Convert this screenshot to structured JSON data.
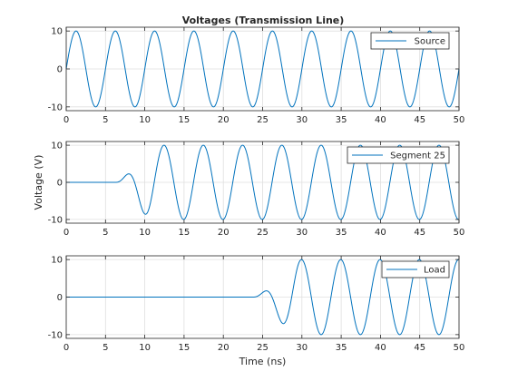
{
  "chart_data": [
    {
      "type": "line",
      "title": "Voltages (Transmission Line)",
      "xlabel": "",
      "ylabel": "",
      "xlim": [
        0,
        50
      ],
      "ylim": [
        -11,
        11
      ],
      "xticks": [
        0,
        5,
        10,
        15,
        20,
        25,
        30,
        35,
        40,
        45,
        50
      ],
      "xtick_labels": [
        "0",
        "5",
        "10",
        "15",
        "20",
        "25",
        "30",
        "35",
        "40",
        "45",
        "50"
      ],
      "yticks": [
        -10,
        0,
        10
      ],
      "ytick_labels": [
        "-10",
        "0",
        "10"
      ],
      "grid": true,
      "legend_position": "top-right",
      "series": [
        {
          "name": "Source",
          "color": "#0072BD",
          "amplitude": 10,
          "period_ns": 5,
          "delay_ns": 0,
          "ramp_ns": 0
        }
      ]
    },
    {
      "type": "line",
      "title": "",
      "xlabel": "",
      "ylabel": "Voltage (V)",
      "xlim": [
        0,
        50
      ],
      "ylim": [
        -11,
        11
      ],
      "xticks": [
        0,
        5,
        10,
        15,
        20,
        25,
        30,
        35,
        40,
        45,
        50
      ],
      "xtick_labels": [
        "0",
        "5",
        "10",
        "15",
        "20",
        "25",
        "30",
        "35",
        "40",
        "45",
        "50"
      ],
      "yticks": [
        -10,
        0,
        10
      ],
      "ytick_labels": [
        "-10",
        "0",
        "10"
      ],
      "grid": true,
      "legend_position": "top-right",
      "series": [
        {
          "name": "Segment 25",
          "color": "#0072BD",
          "amplitude": 10,
          "period_ns": 5,
          "delay_ns": 6.2,
          "ramp_ns": 5
        }
      ]
    },
    {
      "type": "line",
      "title": "",
      "xlabel": "Time (ns)",
      "ylabel": "",
      "xlim": [
        0,
        50
      ],
      "ylim": [
        -11,
        11
      ],
      "xticks": [
        0,
        5,
        10,
        15,
        20,
        25,
        30,
        35,
        40,
        45,
        50
      ],
      "xtick_labels": [
        "0",
        "5",
        "10",
        "15",
        "20",
        "25",
        "30",
        "35",
        "40",
        "45",
        "50"
      ],
      "yticks": [
        -10,
        0,
        10
      ],
      "ytick_labels": [
        "-10",
        "0",
        "10"
      ],
      "grid": true,
      "legend_position": "top-right",
      "series": [
        {
          "name": "Load",
          "color": "#0072BD",
          "amplitude": 10,
          "period_ns": 5,
          "delay_ns": 23.7,
          "ramp_ns": 6
        }
      ]
    }
  ]
}
